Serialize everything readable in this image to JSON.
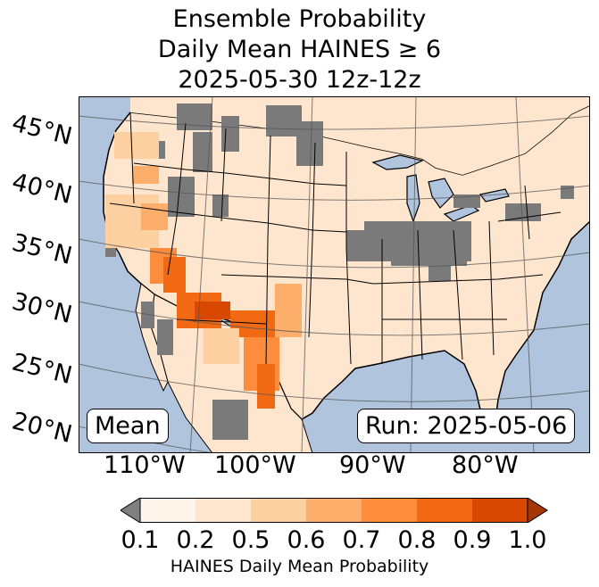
{
  "title": {
    "line1": "Ensemble Probability",
    "line2": "Daily Mean HAINES ≥ 6",
    "line3": "2025-05-30 12z-12z"
  },
  "latitude_labels": [
    "45°N",
    "40°N",
    "35°N",
    "30°N",
    "25°N",
    "20°N"
  ],
  "longitude_labels": [
    "110°W",
    "100°W",
    "90°W",
    "80°W"
  ],
  "stat_label": "Mean",
  "run_label": "Run: 2025-05-06",
  "colorbar": {
    "ticks": [
      "0.1",
      "0.2",
      "0.5",
      "0.6",
      "0.7",
      "0.8",
      "0.9",
      "1.0"
    ],
    "label": "HAINES Daily Mean Probability",
    "colors": [
      "#fff5eb",
      "#fee6ce",
      "#fdd0a2",
      "#fdae6b",
      "#fd8d3c",
      "#f16913",
      "#d94801"
    ],
    "under_color": "#808080",
    "over_color": "#a63603"
  },
  "colors": {
    "ocean": "#b0c4de",
    "missing": "#7a7a7a"
  }
}
